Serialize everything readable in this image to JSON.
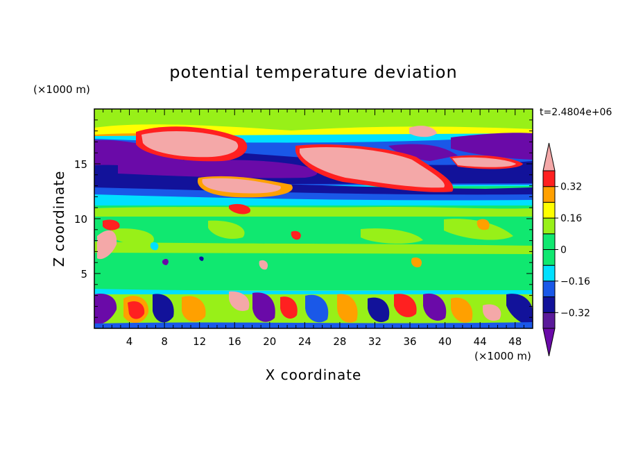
{
  "chart_data": {
    "type": "heatmap",
    "title": "potential temperature deviation",
    "xlabel": "X coordinate",
    "ylabel": "Z coordinate",
    "x_unit": "(×1000 m)",
    "y_unit": "(×1000 m)",
    "time_label": "t=2.4804e+06",
    "xlim": [
      0,
      50
    ],
    "ylim": [
      0,
      20
    ],
    "x_ticks": [
      "4",
      "8",
      "12",
      "16",
      "20",
      "24",
      "28",
      "32",
      "36",
      "40",
      "44",
      "48"
    ],
    "y_ticks": [
      "5",
      "10",
      "15"
    ],
    "colorbar": {
      "levels": [
        -0.4,
        -0.32,
        -0.24,
        -0.16,
        -0.08,
        0,
        0.08,
        0.16,
        0.24,
        0.32,
        0.4
      ],
      "labels": [
        "0.32",
        "0.16",
        "0",
        "−0.16",
        "−0.32"
      ],
      "colors": {
        "below": "#6a0aa8",
        "neg_4": "#5a1a9a",
        "neg_3": "#12129a",
        "neg_2": "#1a58e8",
        "neg_1": "#00e0ff",
        "zero_band": "#10e870",
        "pos_1": "#98f018",
        "pos_2": "#ffff00",
        "pos_3": "#ffa000",
        "pos_4": "#ff2020",
        "above": "#f4a8a8"
      }
    }
  }
}
